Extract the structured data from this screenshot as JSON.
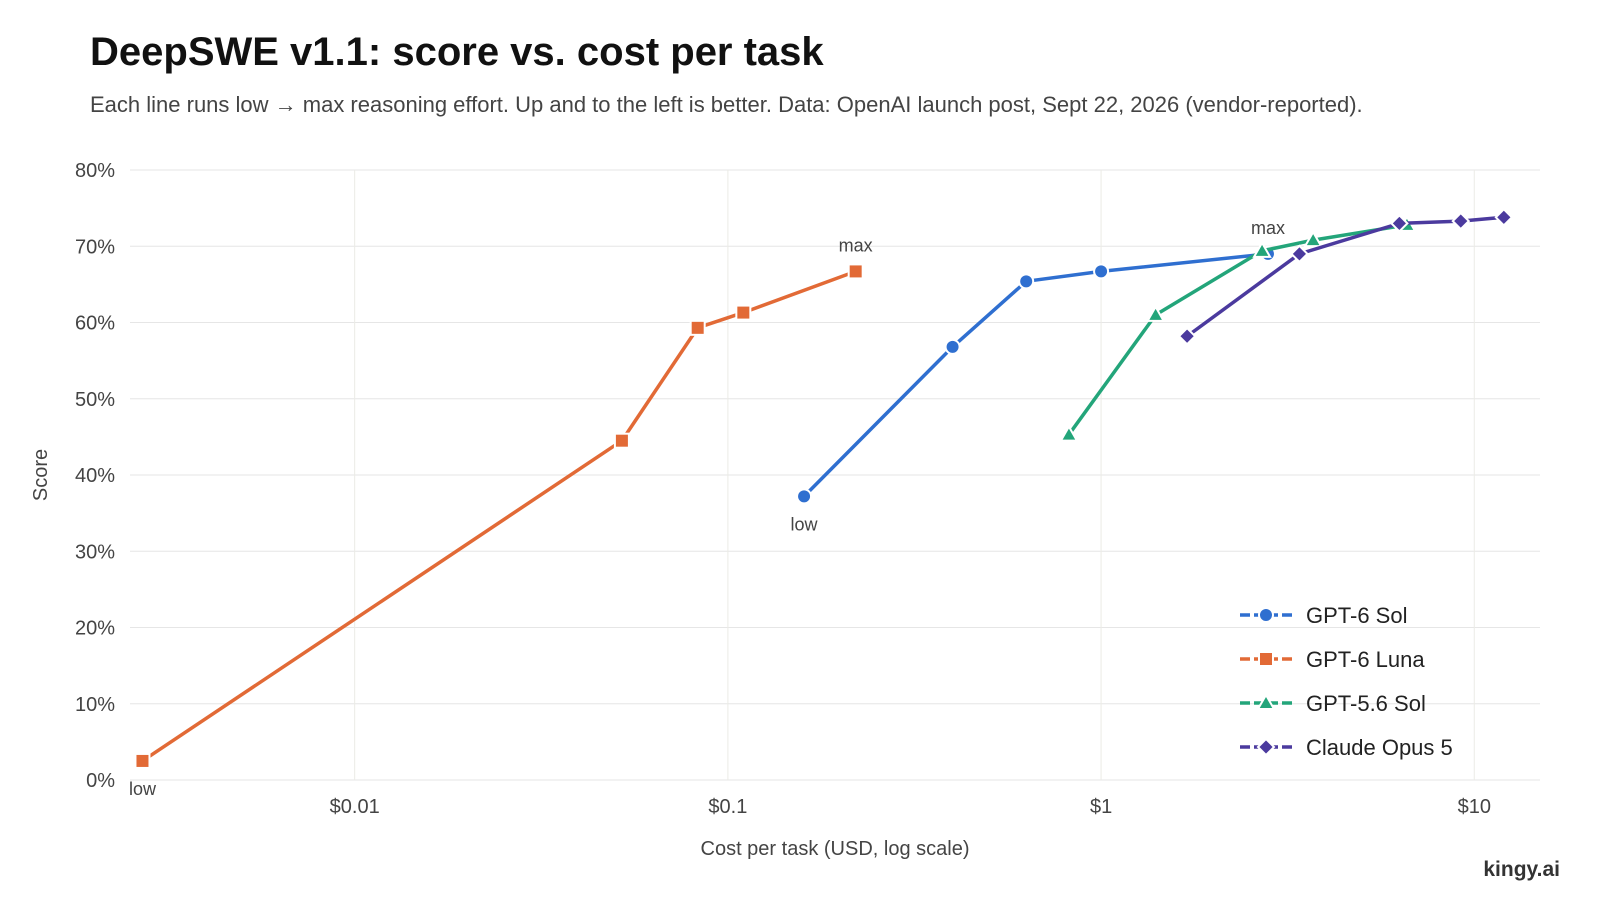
{
  "chart_data": {
    "type": "line",
    "title": "DeepSWE v1.1: score vs. cost per task",
    "subtitle": "Each line runs low → max reasoning effort. Up and to the left is better. Data: OpenAI launch post, Sept 22, 2026 (vendor-reported).",
    "xlabel": "Cost per task (USD, log scale)",
    "ylabel": "Score",
    "x_scale": "log",
    "xlim": [
      0.0025,
      15
    ],
    "ylim": [
      0,
      80
    ],
    "x_ticks": [
      {
        "value": 0.01,
        "label": "$0.01"
      },
      {
        "value": 0.1,
        "label": "$0.1"
      },
      {
        "value": 1,
        "label": "$1"
      },
      {
        "value": 10,
        "label": "$10"
      }
    ],
    "y_ticks": [
      {
        "value": 0,
        "label": "0%"
      },
      {
        "value": 10,
        "label": "10%"
      },
      {
        "value": 20,
        "label": "20%"
      },
      {
        "value": 30,
        "label": "30%"
      },
      {
        "value": 40,
        "label": "40%"
      },
      {
        "value": 50,
        "label": "50%"
      },
      {
        "value": 60,
        "label": "60%"
      },
      {
        "value": 70,
        "label": "70%"
      },
      {
        "value": 80,
        "label": "80%"
      }
    ],
    "grid": true,
    "legend_position": "bottom-right",
    "series": [
      {
        "name": "GPT-6 Sol",
        "color": "#2f6fd0",
        "marker": "circle",
        "points": [
          {
            "x": 0.16,
            "y": 37.2
          },
          {
            "x": 0.4,
            "y": 56.8
          },
          {
            "x": 0.63,
            "y": 65.4
          },
          {
            "x": 1.0,
            "y": 66.7
          },
          {
            "x": 2.8,
            "y": 69.0
          }
        ]
      },
      {
        "name": "GPT-6 Luna",
        "color": "#e26a36",
        "marker": "square",
        "points": [
          {
            "x": 0.0027,
            "y": 2.5
          },
          {
            "x": 0.052,
            "y": 44.5
          },
          {
            "x": 0.083,
            "y": 59.3
          },
          {
            "x": 0.11,
            "y": 61.3
          },
          {
            "x": 0.22,
            "y": 66.7
          }
        ]
      },
      {
        "name": "GPT-5.6 Sol",
        "color": "#23a57a",
        "marker": "triangle",
        "points": [
          {
            "x": 0.82,
            "y": 45.3
          },
          {
            "x": 1.4,
            "y": 61.0
          },
          {
            "x": 2.7,
            "y": 69.4
          },
          {
            "x": 3.7,
            "y": 70.8
          },
          {
            "x": 6.6,
            "y": 72.8
          }
        ]
      },
      {
        "name": "Claude Opus 5",
        "color": "#4b3a9e",
        "marker": "diamond",
        "points": [
          {
            "x": 1.7,
            "y": 58.2
          },
          {
            "x": 3.4,
            "y": 69.0
          },
          {
            "x": 6.3,
            "y": 73.0
          },
          {
            "x": 9.2,
            "y": 73.3
          },
          {
            "x": 12.0,
            "y": 73.8
          }
        ]
      }
    ],
    "annotations": [
      {
        "text": "low",
        "series": "GPT-6 Luna",
        "point": 0,
        "placement": "below"
      },
      {
        "text": "max",
        "series": "GPT-6 Luna",
        "point": 4,
        "placement": "above"
      },
      {
        "text": "low",
        "series": "GPT-6 Sol",
        "point": 0,
        "placement": "below"
      },
      {
        "text": "max",
        "series": "GPT-6 Sol",
        "point": 4,
        "placement": "above"
      }
    ]
  },
  "watermark": "kingy.ai"
}
